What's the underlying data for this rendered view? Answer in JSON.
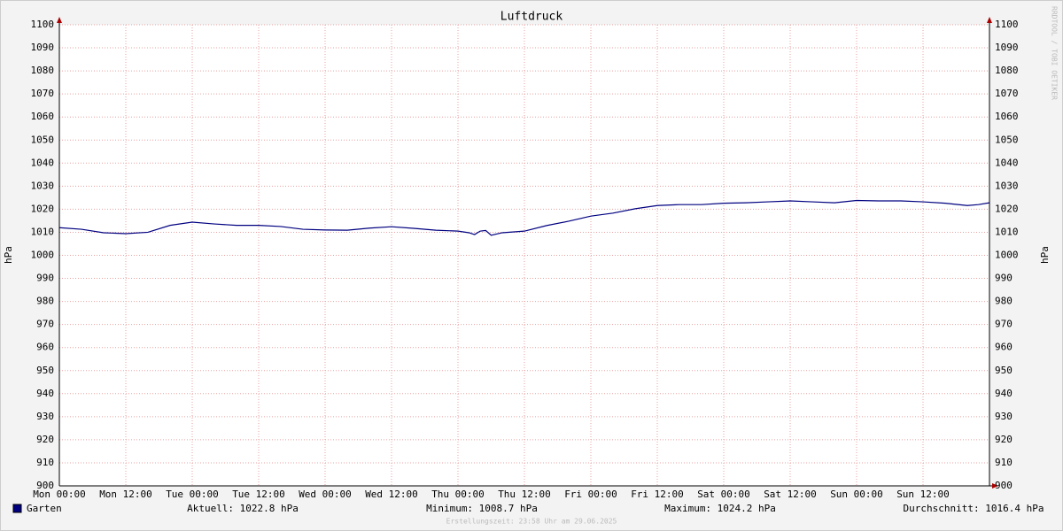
{
  "chart_data": {
    "type": "line",
    "title": "Luftdruck",
    "y_label": "hPa",
    "x": [
      0,
      4,
      8,
      12,
      16,
      20,
      24,
      28,
      32,
      36,
      40,
      44,
      48,
      52,
      56,
      60,
      64,
      68,
      72,
      74,
      75,
      76,
      77,
      78,
      80,
      84,
      88,
      92,
      96,
      100,
      104,
      108,
      112,
      116,
      120,
      124,
      128,
      132,
      136,
      140,
      144,
      148,
      152,
      156,
      160,
      164,
      166,
      168
    ],
    "series": [
      {
        "name": "Garten",
        "color": "#000080",
        "values": [
          1012,
          1011.3,
          1009.8,
          1009.4,
          1010,
          1013,
          1014.4,
          1013.6,
          1013,
          1013,
          1012.5,
          1011.3,
          1011,
          1010.9,
          1011.8,
          1012.4,
          1011.7,
          1010.9,
          1010.5,
          1009.8,
          1009,
          1010.5,
          1010.8,
          1008.7,
          1009.8,
          1010.5,
          1012.9,
          1014.8,
          1017,
          1018.3,
          1020.2,
          1021.6,
          1022,
          1022,
          1022.6,
          1022.8,
          1023.2,
          1023.6,
          1023.2,
          1022.8,
          1023.8,
          1023.6,
          1023.6,
          1023.2,
          1022.6,
          1021.6,
          1022,
          1022.8
        ]
      }
    ],
    "xlim": [
      0,
      168
    ],
    "xticks": [
      {
        "value": 0,
        "label": "Mon 00:00"
      },
      {
        "value": 12,
        "label": "Mon 12:00"
      },
      {
        "value": 24,
        "label": "Tue 00:00"
      },
      {
        "value": 36,
        "label": "Tue 12:00"
      },
      {
        "value": 48,
        "label": "Wed 00:00"
      },
      {
        "value": 60,
        "label": "Wed 12:00"
      },
      {
        "value": 72,
        "label": "Thu 00:00"
      },
      {
        "value": 84,
        "label": "Thu 12:00"
      },
      {
        "value": 96,
        "label": "Fri 00:00"
      },
      {
        "value": 108,
        "label": "Fri 12:00"
      },
      {
        "value": 120,
        "label": "Sat 00:00"
      },
      {
        "value": 132,
        "label": "Sat 12:00"
      },
      {
        "value": 144,
        "label": "Sun 00:00"
      },
      {
        "value": 156,
        "label": "Sun 12:00"
      }
    ],
    "ylim": [
      900,
      1100
    ],
    "yticks": [
      900,
      910,
      920,
      930,
      940,
      950,
      960,
      970,
      980,
      990,
      1000,
      1010,
      1020,
      1030,
      1040,
      1050,
      1060,
      1070,
      1080,
      1090,
      1100
    ],
    "grid": true,
    "stats": [
      "Aktuell: 1022.8 hPa",
      "Minimum: 1008.7 hPa",
      "Maximum: 1024.2 hPa",
      "Durchschnitt: 1016.4 hPa"
    ],
    "footer": "Erstellungszeit: 23:58 Uhr am 29.06.2025",
    "watermark": "RRDTOOL / TOBI OETIKER"
  }
}
